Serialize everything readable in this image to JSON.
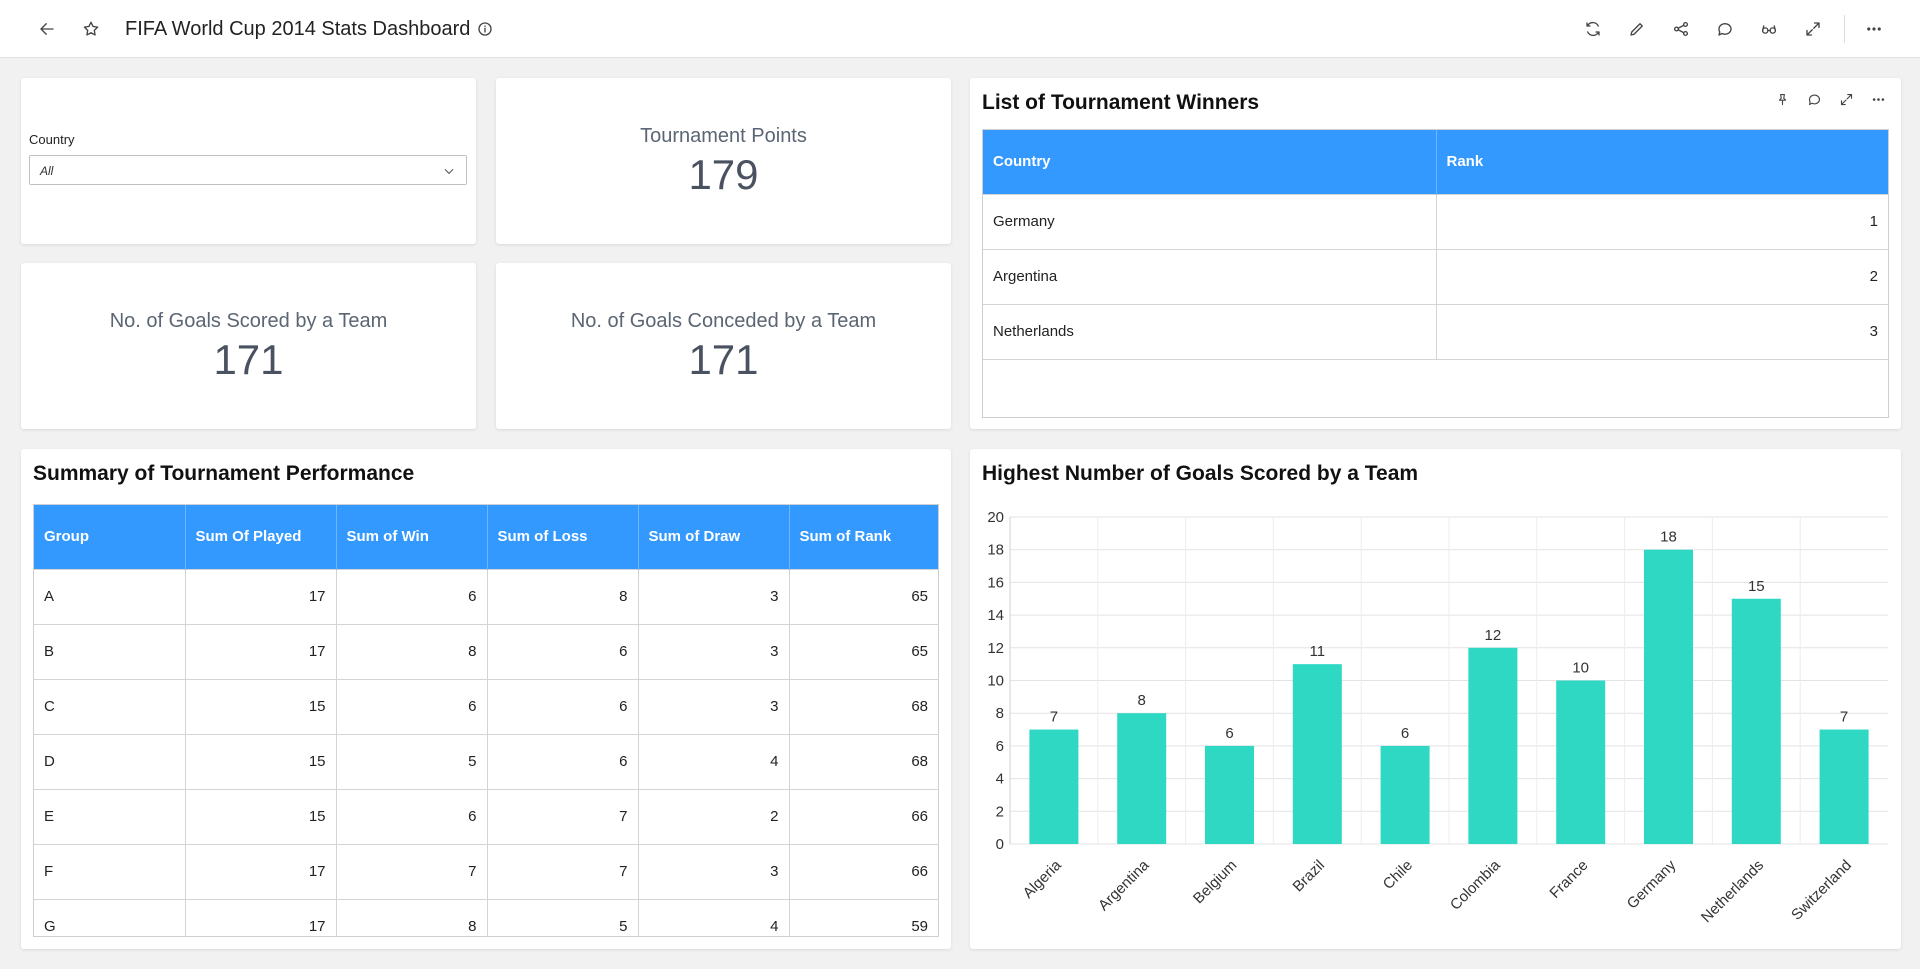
{
  "header": {
    "title": "FIFA World Cup 2014 Stats Dashboard"
  },
  "filter": {
    "label": "Country",
    "selected": "All"
  },
  "kpis": {
    "tournament_points": {
      "label": "Tournament Points",
      "value": "179"
    },
    "goals_scored": {
      "label": "No. of Goals Scored by a Team",
      "value": "171"
    },
    "goals_conceded": {
      "label": "No. of Goals Conceded by a Team",
      "value": "171"
    }
  },
  "winners": {
    "title": "List of Tournament Winners",
    "columns": [
      "Country",
      "Rank"
    ],
    "rows": [
      [
        "Germany",
        "1"
      ],
      [
        "Argentina",
        "2"
      ],
      [
        "Netherlands",
        "3"
      ]
    ]
  },
  "summary": {
    "title": "Summary of Tournament Performance",
    "columns": [
      "Group",
      "Sum Of Played",
      "Sum of Win",
      "Sum of Loss",
      "Sum of Draw",
      "Sum of Rank"
    ],
    "rows": [
      [
        "A",
        "17",
        "6",
        "8",
        "3",
        "65"
      ],
      [
        "B",
        "17",
        "8",
        "6",
        "3",
        "65"
      ],
      [
        "C",
        "15",
        "6",
        "6",
        "3",
        "68"
      ],
      [
        "D",
        "15",
        "5",
        "6",
        "4",
        "68"
      ],
      [
        "E",
        "15",
        "6",
        "7",
        "2",
        "66"
      ],
      [
        "F",
        "17",
        "7",
        "7",
        "3",
        "66"
      ],
      [
        "G",
        "17",
        "8",
        "5",
        "4",
        "59"
      ]
    ]
  },
  "chart_data": {
    "type": "bar",
    "title": "Highest Number of Goals Scored by a Team",
    "categories": [
      "Algeria",
      "Argentina",
      "Belgium",
      "Brazil",
      "Chile",
      "Colombia",
      "France",
      "Germany",
      "Netherlands",
      "Switzerland"
    ],
    "values": [
      7,
      8,
      6,
      11,
      6,
      12,
      10,
      18,
      15,
      7
    ],
    "ylim": [
      0,
      20
    ],
    "yticks": [
      0,
      2,
      4,
      6,
      8,
      10,
      12,
      14,
      16,
      18,
      20
    ],
    "grid": true,
    "bar_color": "#2ed8c3",
    "data_labels": true
  },
  "colors": {
    "table_header": "#3399ff",
    "bar": "#2ed8c3"
  }
}
